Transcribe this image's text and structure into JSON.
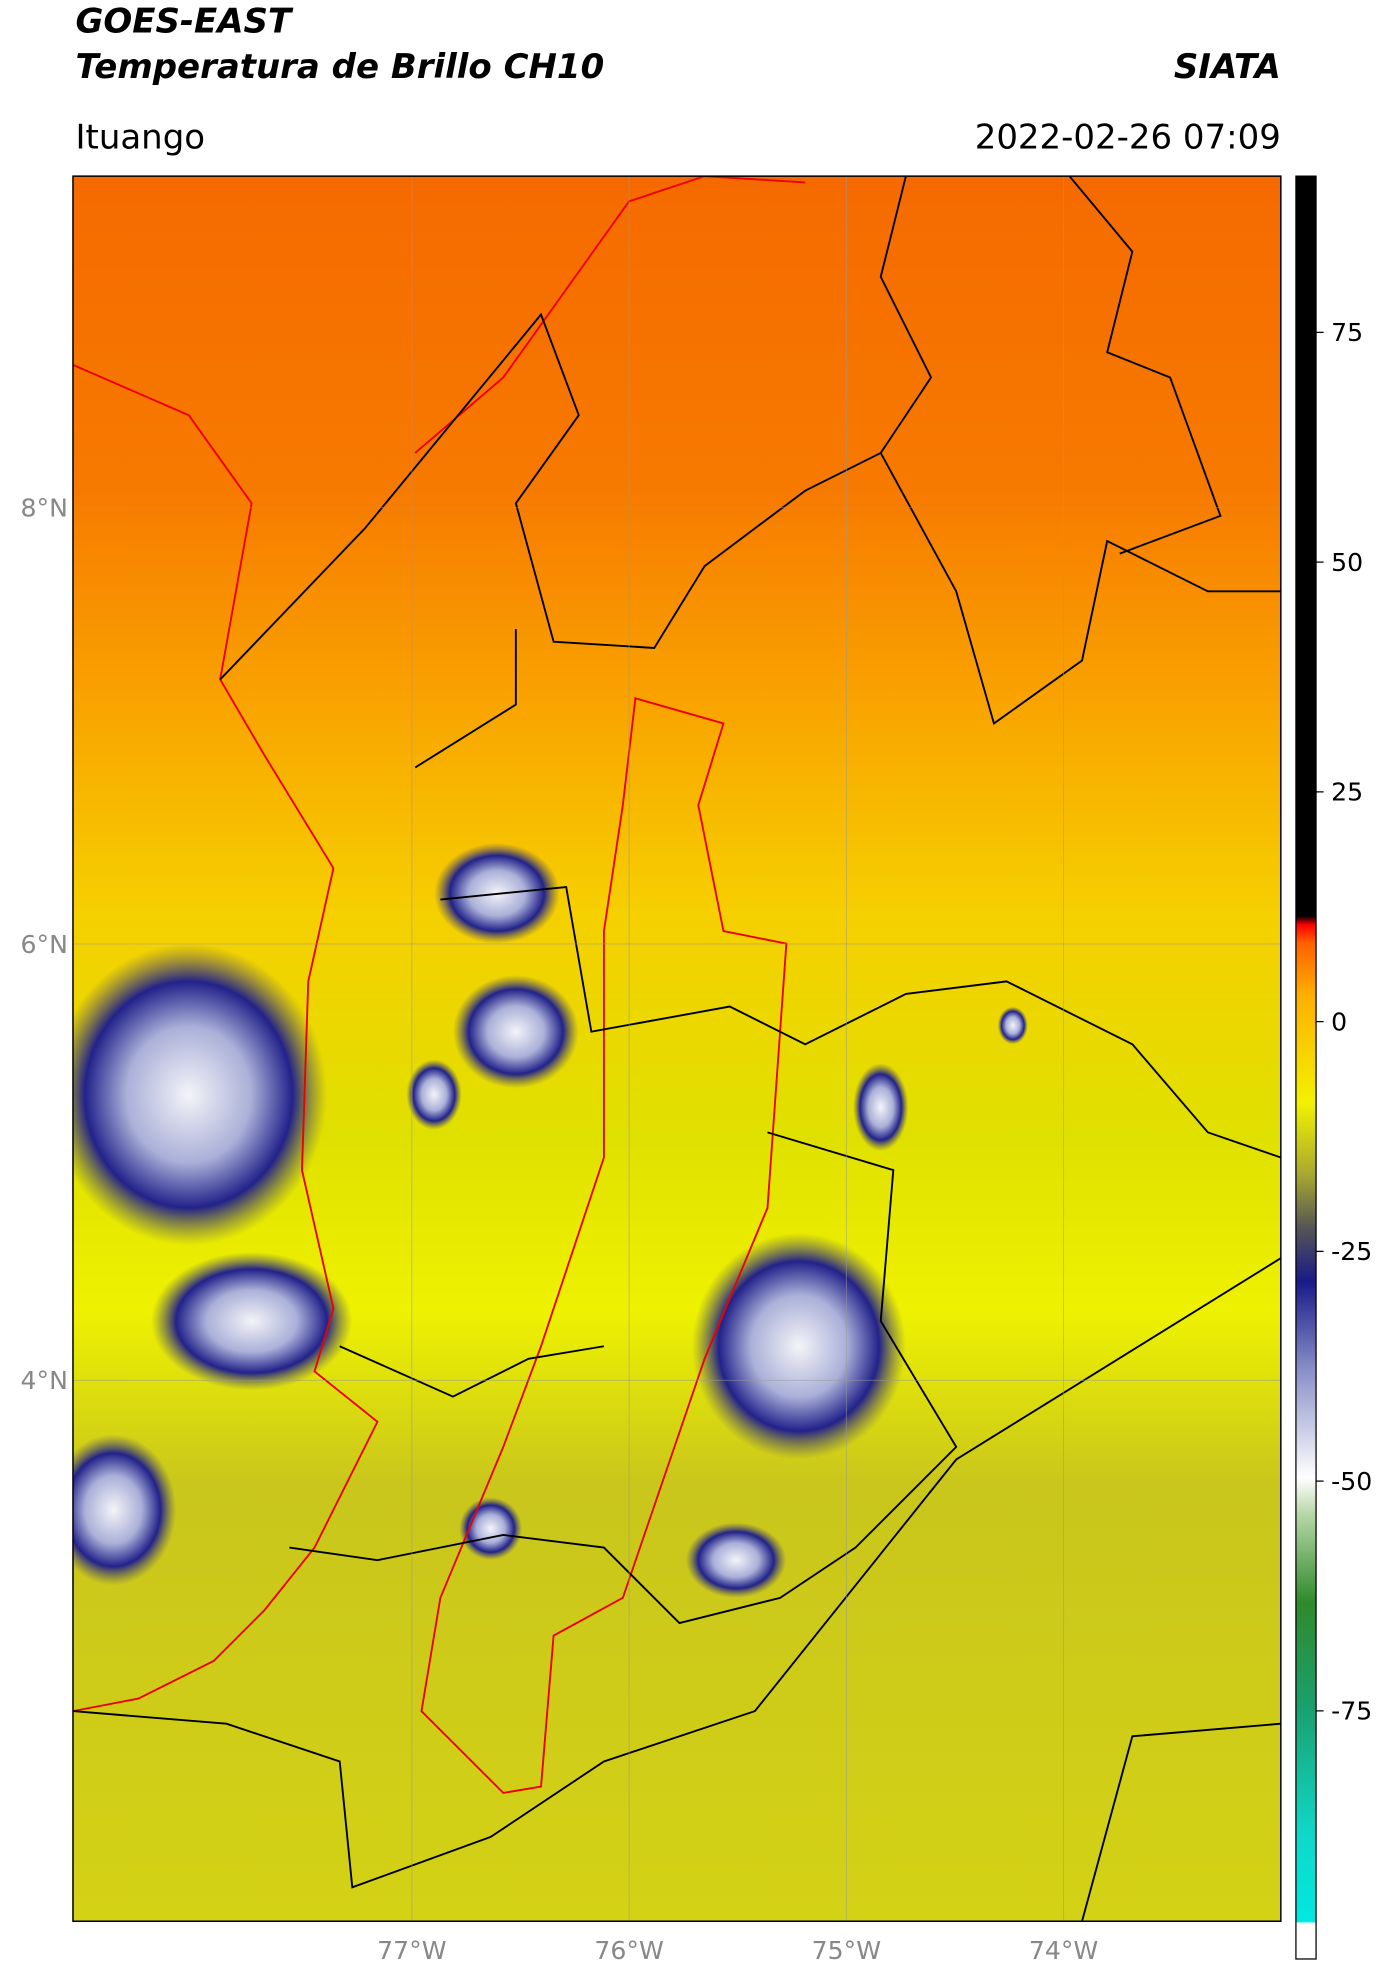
{
  "header": {
    "title": "GOES-EAST",
    "subtitle": "Temperatura de Brillo CH10",
    "source": "SIATA",
    "region": "Ituango",
    "datetime": "2022-02-26 07:09"
  },
  "map": {
    "xlim": [
      -78.56,
      -73.0
    ],
    "ylim": [
      1.52,
      9.52
    ],
    "xticks": [
      {
        "value": -77,
        "label": "77°W"
      },
      {
        "value": -76,
        "label": "76°W"
      },
      {
        "value": -75,
        "label": "75°W"
      },
      {
        "value": -74,
        "label": "74°W"
      }
    ],
    "yticks": [
      {
        "value": 8,
        "label": "8°N"
      },
      {
        "value": 6,
        "label": "6°N"
      },
      {
        "value": 4,
        "label": "4°N"
      }
    ],
    "grid": true
  },
  "colorbar": {
    "lim": [
      -102,
      92
    ],
    "ticks": [
      75,
      50,
      25,
      0,
      -25,
      -50,
      -75
    ]
  }
}
